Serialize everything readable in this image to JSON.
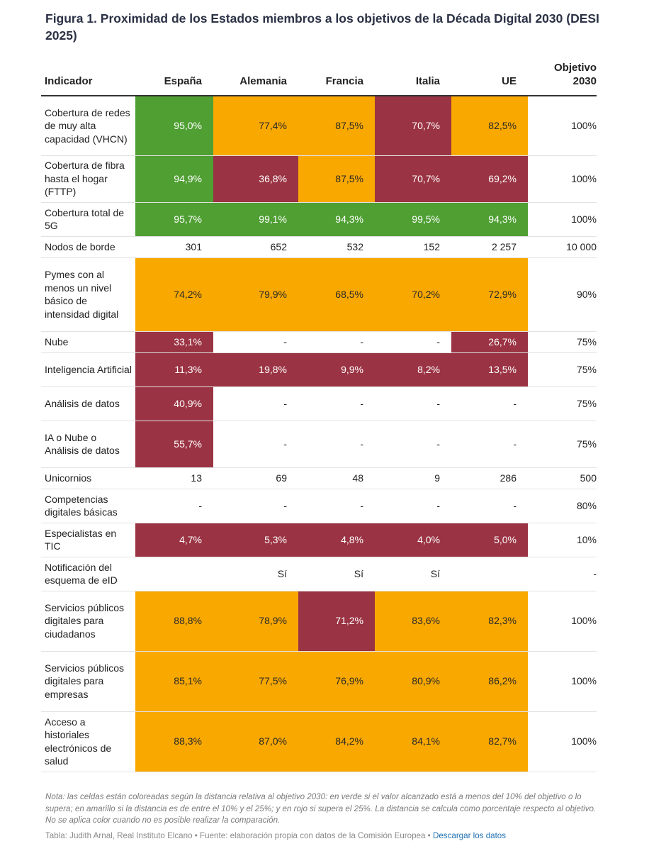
{
  "title": "Figura 1. Proximidad de los Estados miembros a los objetivos de la Década Digital 2030 (DESI 2025)",
  "colors": {
    "green": "#4f9f33",
    "amber": "#f9a800",
    "red": "#9a3343",
    "title_text": "#2b3245",
    "link": "#1f6fb2"
  },
  "chart_data": {
    "type": "table",
    "columns": [
      "Indicador",
      "España",
      "Alemania",
      "Francia",
      "Italia",
      "UE",
      "Objetivo 2030"
    ],
    "rows": [
      {
        "indicator": "Cobertura de redes de muy alta capacidad (VHCN)",
        "values": [
          "95,0%",
          "77,4%",
          "87,5%",
          "70,7%",
          "82,5%"
        ],
        "colors": [
          "green",
          "amber",
          "amber",
          "red",
          "amber"
        ],
        "target": "100%"
      },
      {
        "indicator": "Cobertura de fibra hasta el hogar (FTTP)",
        "values": [
          "94,9%",
          "36,8%",
          "87,5%",
          "70,7%",
          "69,2%"
        ],
        "colors": [
          "green",
          "red",
          "amber",
          "red",
          "red"
        ],
        "target": "100%"
      },
      {
        "indicator": "Cobertura total de 5G",
        "values": [
          "95,7%",
          "99,1%",
          "94,3%",
          "99,5%",
          "94,3%"
        ],
        "colors": [
          "green",
          "green",
          "green",
          "green",
          "green"
        ],
        "target": "100%"
      },
      {
        "indicator": "Nodos de borde",
        "values": [
          "301",
          "652",
          "532",
          "152",
          "2 257"
        ],
        "colors": [
          "",
          "",
          "",
          "",
          ""
        ],
        "target": "10 000"
      },
      {
        "indicator": "Pymes con al menos un nivel básico de intensidad digital",
        "values": [
          "74,2%",
          "79,9%",
          "68,5%",
          "70,2%",
          "72,9%"
        ],
        "colors": [
          "amber",
          "amber",
          "amber",
          "amber",
          "amber"
        ],
        "target": "90%"
      },
      {
        "indicator": "Nube",
        "values": [
          "33,1%",
          "-",
          "-",
          "-",
          "26,7%"
        ],
        "colors": [
          "red",
          "",
          "",
          "",
          "red"
        ],
        "target": "75%"
      },
      {
        "indicator": "Inteligencia Artificial",
        "values": [
          "11,3%",
          "19,8%",
          "9,9%",
          "8,2%",
          "13,5%"
        ],
        "colors": [
          "red",
          "red",
          "red",
          "red",
          "red"
        ],
        "target": "75%"
      },
      {
        "indicator": "Análisis de datos",
        "values": [
          "40,9%",
          "-",
          "-",
          "-",
          "-"
        ],
        "colors": [
          "red",
          "",
          "",
          "",
          ""
        ],
        "target": "75%"
      },
      {
        "indicator": "IA o Nube o Análisis de datos",
        "values": [
          "55,7%",
          "-",
          "-",
          "-",
          "-"
        ],
        "colors": [
          "red",
          "",
          "",
          "",
          ""
        ],
        "target": "75%"
      },
      {
        "indicator": "Unicornios",
        "values": [
          "13",
          "69",
          "48",
          "9",
          "286"
        ],
        "colors": [
          "",
          "",
          "",
          "",
          ""
        ],
        "target": "500"
      },
      {
        "indicator": "Competencias digitales básicas",
        "values": [
          "-",
          "-",
          "-",
          "-",
          "-"
        ],
        "colors": [
          "",
          "",
          "",
          "",
          ""
        ],
        "target": "80%"
      },
      {
        "indicator": "Especialistas en TIC",
        "values": [
          "4,7%",
          "5,3%",
          "4,8%",
          "4,0%",
          "5,0%"
        ],
        "colors": [
          "red",
          "red",
          "red",
          "red",
          "red"
        ],
        "target": "10%"
      },
      {
        "indicator": "Notificación del esquema de eID",
        "values": [
          "",
          "Sí",
          "Sí",
          "Sí",
          ""
        ],
        "colors": [
          "",
          "",
          "",
          "",
          ""
        ],
        "target": "-"
      },
      {
        "indicator": "Servicios públicos digitales para ciudadanos",
        "values": [
          "88,8%",
          "78,9%",
          "71,2%",
          "83,6%",
          "82,3%"
        ],
        "colors": [
          "amber",
          "amber",
          "red",
          "amber",
          "amber"
        ],
        "target": "100%"
      },
      {
        "indicator": "Servicios públicos digitales para empresas",
        "values": [
          "85,1%",
          "77,5%",
          "76,9%",
          "80,9%",
          "86,2%"
        ],
        "colors": [
          "amber",
          "amber",
          "amber",
          "amber",
          "amber"
        ],
        "target": "100%"
      },
      {
        "indicator": "Acceso a historiales electrónicos de salud",
        "values": [
          "88,3%",
          "87,0%",
          "84,2%",
          "84,1%",
          "82,7%"
        ],
        "colors": [
          "amber",
          "amber",
          "amber",
          "amber",
          "amber"
        ],
        "target": "100%"
      }
    ]
  },
  "note": "Nota: las celdas están coloreadas según la distancia relativa al objetivo 2030: en verde si el valor alcanzado está a menos del 10% del objetivo o lo supera; en amarillo si la distancia es de entre el 10% y el 25%; y en rojo si supera el 25%. La distancia se calcula como porcentaje respecto al objetivo. No se aplica color cuando no es posible realizar la comparación.",
  "credit": {
    "table_by": "Tabla: Judith Arnal, Real Instituto Elcano",
    "separator": " • ",
    "source": "Fuente: elaboración propia con datos de la Comisión Europea",
    "download": "Descargar los datos"
  }
}
